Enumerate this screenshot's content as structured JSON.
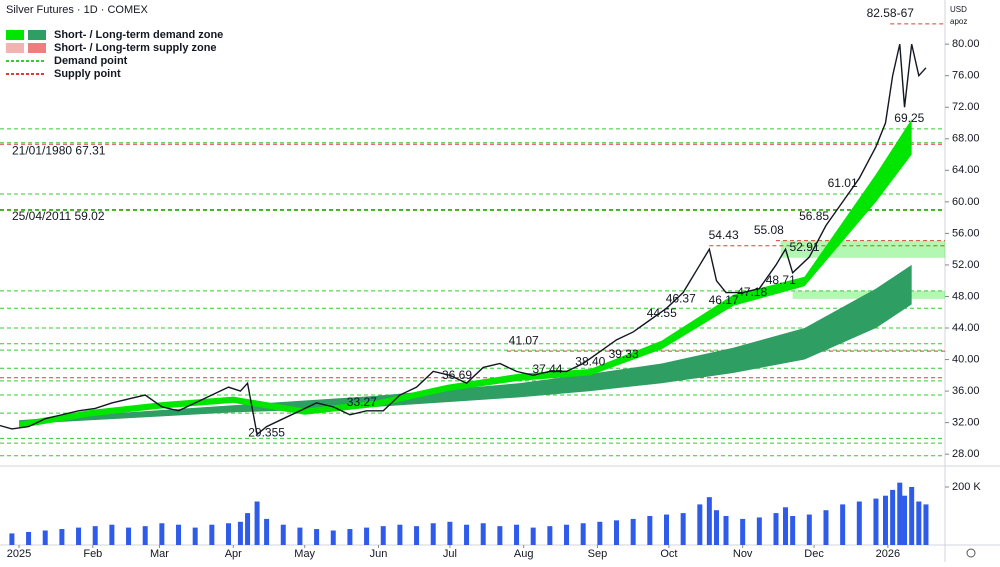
{
  "chart_data": {
    "type": "line",
    "title": "Silver Futures · 1D · COMEX",
    "currency": "USD",
    "scale_label": "apoz",
    "legend": [
      {
        "label": "Short- / Long-term demand zone",
        "colors": [
          "#00e600",
          "#2e9e62"
        ],
        "style": "box"
      },
      {
        "label": "Short- / Long-term supply zone",
        "colors": [
          "#f4b3b3",
          "#ef7f7f"
        ],
        "style": "box"
      },
      {
        "label": "Demand point",
        "colors": [
          "#33cc33"
        ],
        "style": "dash"
      },
      {
        "label": "Supply point",
        "colors": [
          "#e53935"
        ],
        "style": "dash"
      }
    ],
    "x": [
      -10,
      -3,
      4,
      11,
      18,
      25,
      32,
      39,
      46,
      53,
      60,
      67,
      74,
      81,
      88,
      93,
      96,
      100,
      104,
      111,
      118,
      125,
      132,
      139,
      146,
      153,
      160,
      167,
      174,
      181,
      188,
      195,
      202,
      209,
      216,
      223,
      230,
      237,
      244,
      251,
      258,
      265,
      272,
      279,
      286,
      290,
      293,
      297,
      304,
      311,
      318,
      322,
      325,
      332,
      339,
      346,
      353,
      360,
      364,
      367,
      370,
      372,
      375,
      378,
      381
    ],
    "xlim": [
      -8,
      389
    ],
    "xticks": [
      {
        "value": 0,
        "label": "2025"
      },
      {
        "value": 31,
        "label": "Feb"
      },
      {
        "value": 59,
        "label": "Mar"
      },
      {
        "value": 90,
        "label": "Apr"
      },
      {
        "value": 120,
        "label": "May"
      },
      {
        "value": 151,
        "label": "Jun"
      },
      {
        "value": 181,
        "label": "Jul"
      },
      {
        "value": 212,
        "label": "Aug"
      },
      {
        "value": 243,
        "label": "Sep"
      },
      {
        "value": 273,
        "label": "Oct"
      },
      {
        "value": 304,
        "label": "Nov"
      },
      {
        "value": 334,
        "label": "Dec"
      },
      {
        "value": 365,
        "label": "2026"
      }
    ],
    "ylim": [
      26.5,
      85.6
    ],
    "yticks": [
      {
        "value": 28,
        "label": "28.00"
      },
      {
        "value": 32,
        "label": "32.00"
      },
      {
        "value": 36,
        "label": "36.00"
      },
      {
        "value": 40,
        "label": "40.00"
      },
      {
        "value": 44,
        "label": "44.00"
      },
      {
        "value": 48,
        "label": "48.00"
      },
      {
        "value": 52,
        "label": "52.00"
      },
      {
        "value": 56,
        "label": "56.00"
      },
      {
        "value": 60,
        "label": "60.00"
      },
      {
        "value": 64,
        "label": "64.00"
      },
      {
        "value": 68,
        "label": "68.00"
      },
      {
        "value": 72,
        "label": "72.00"
      },
      {
        "value": 76,
        "label": "76.00"
      },
      {
        "value": 80,
        "label": "80.00"
      }
    ],
    "series": [
      {
        "name": "Close",
        "color": "#131722",
        "values": [
          31.8,
          31.2,
          31.5,
          32.5,
          33.0,
          33.5,
          33.8,
          34.5,
          35.0,
          35.5,
          34.0,
          33.5,
          34.5,
          35.5,
          36.5,
          36.0,
          37.0,
          30.5,
          31.5,
          32.5,
          33.5,
          34.5,
          34.0,
          33.0,
          33.5,
          33.5,
          35.5,
          36.5,
          38.5,
          38.0,
          37.0,
          39.0,
          39.5,
          38.5,
          38.0,
          38.5,
          38.5,
          39.5,
          41.0,
          42.5,
          43.5,
          45.0,
          46.5,
          48.5,
          52.0,
          54.0,
          50.0,
          48.5,
          48.5,
          49.0,
          52.0,
          54.0,
          51.0,
          53.0,
          57.0,
          60.0,
          63.0,
          67.0,
          70.0,
          76.0,
          80.0,
          72.0,
          80.0,
          76.0,
          77.0
        ]
      }
    ],
    "volume": {
      "color": "#2f5bea",
      "ylim": [
        0,
        258600
      ],
      "ticks": [
        {
          "value": 200000,
          "label": "200 K"
        }
      ],
      "values": [
        60000,
        40000,
        45000,
        50000,
        55000,
        60000,
        65000,
        70000,
        60000,
        65000,
        75000,
        70000,
        60000,
        70000,
        75000,
        80000,
        110000,
        150000,
        90000,
        70000,
        60000,
        55000,
        50000,
        55000,
        60000,
        65000,
        70000,
        65000,
        75000,
        80000,
        70000,
        75000,
        65000,
        70000,
        60000,
        65000,
        70000,
        75000,
        80000,
        85000,
        90000,
        100000,
        105000,
        110000,
        140000,
        165000,
        120000,
        100000,
        90000,
        95000,
        110000,
        130000,
        100000,
        105000,
        120000,
        140000,
        150000,
        160000,
        170000,
        190000,
        215000,
        170000,
        200000,
        150000,
        140000
      ]
    },
    "short_zone": {
      "x": [
        0,
        30,
        60,
        90,
        120,
        150,
        180,
        210,
        240,
        270,
        300,
        330,
        360,
        375
      ],
      "color": "#00e600",
      "lower": [
        31.3,
        32.8,
        33.8,
        34.5,
        33.0,
        34.0,
        36.0,
        37.3,
        38.0,
        41.3,
        46.8,
        49.3,
        60.0,
        66.0
      ],
      "upper": [
        32.1,
        33.6,
        34.6,
        35.3,
        33.8,
        34.8,
        36.8,
        38.2,
        38.8,
        42.4,
        48.2,
        50.5,
        63.5,
        70.5
      ]
    },
    "long_zone": {
      "x": [
        0,
        30,
        60,
        90,
        120,
        150,
        180,
        210,
        240,
        270,
        300,
        330,
        360,
        375
      ],
      "color": "#2e9e62",
      "lower": [
        31.8,
        32.3,
        32.8,
        33.3,
        33.6,
        34.0,
        34.6,
        35.2,
        36.0,
        37.0,
        38.3,
        40.0,
        44.0,
        47.0
      ],
      "upper": [
        32.3,
        33.0,
        33.6,
        34.2,
        34.8,
        35.4,
        36.2,
        37.0,
        38.2,
        39.5,
        41.5,
        44.0,
        49.0,
        52.0
      ]
    },
    "demand_boxes": [
      {
        "ylim": [
          52.91,
          55.08
        ],
        "x": [
          320,
          389
        ]
      },
      {
        "ylim": [
          47.7,
          48.71
        ],
        "x": [
          325,
          389
        ]
      }
    ],
    "supply_levels": [
      {
        "value": 82.58,
        "x": 366
      },
      {
        "value": 67.31,
        "x": -8,
        "label": "21/01/1980 67.31"
      },
      {
        "value": 59.02,
        "x": -8,
        "label": "25/04/2011 59.02"
      },
      {
        "value": 37.7,
        "x": -8
      },
      {
        "value": 41.07,
        "x": 205
      },
      {
        "value": 54.43,
        "x": 290
      },
      {
        "value": 55.08,
        "x": 318
      }
    ],
    "demand_levels": [
      69.25,
      67.5,
      61.0,
      58.9,
      48.71,
      46.5,
      44.0,
      42.0,
      41.2,
      38.9,
      37.3,
      35.5,
      33.2,
      30.0,
      29.4,
      27.8
    ],
    "annotations": [
      {
        "label": "82.58-67",
        "value": 82.58,
        "x": 366
      },
      {
        "label": "69.25",
        "value": 69.25,
        "x": 374
      },
      {
        "label": "61.01",
        "value": 61.01,
        "x": 346
      },
      {
        "label": "56.85",
        "value": 56.85,
        "x": 334
      },
      {
        "label": "55.08",
        "value": 55.08,
        "x": 315
      },
      {
        "label": "54.43",
        "value": 54.43,
        "x": 296
      },
      {
        "label": "52.91",
        "value": 52.91,
        "x": 330
      },
      {
        "label": "48.71",
        "value": 48.71,
        "x": 320
      },
      {
        "label": "47.18",
        "value": 47.18,
        "x": 308
      },
      {
        "label": "46.17",
        "value": 46.17,
        "x": 296
      },
      {
        "label": "46.37",
        "value": 46.37,
        "x": 278
      },
      {
        "label": "44.55",
        "value": 44.55,
        "x": 270
      },
      {
        "label": "41.07",
        "value": 41.07,
        "x": 212
      },
      {
        "label": "39.33",
        "value": 39.33,
        "x": 254
      },
      {
        "label": "38.40",
        "value": 38.4,
        "x": 240
      },
      {
        "label": "37.44",
        "value": 37.44,
        "x": 222
      },
      {
        "label": "36.69",
        "value": 36.69,
        "x": 184
      },
      {
        "label": "33.27",
        "value": 33.27,
        "x": 144
      },
      {
        "label": "29.355",
        "value": 29.355,
        "x": 104
      }
    ]
  }
}
